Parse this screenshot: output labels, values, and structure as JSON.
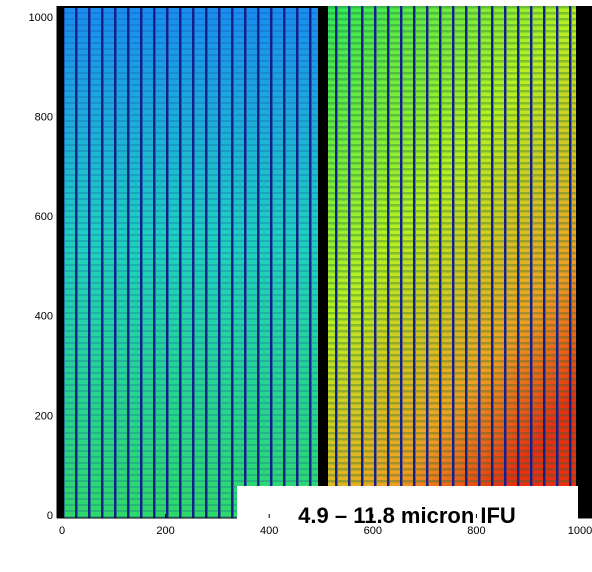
{
  "chart_data": {
    "type": "image",
    "annotation": "4.9 – 11.8 micron IFU",
    "xlim": [
      0,
      1000
    ],
    "ylim": [
      0,
      1000
    ],
    "xticks": [
      0,
      200,
      400,
      600,
      800,
      1000
    ],
    "yticks": [
      0,
      200,
      400,
      600,
      800,
      1000
    ]
  }
}
